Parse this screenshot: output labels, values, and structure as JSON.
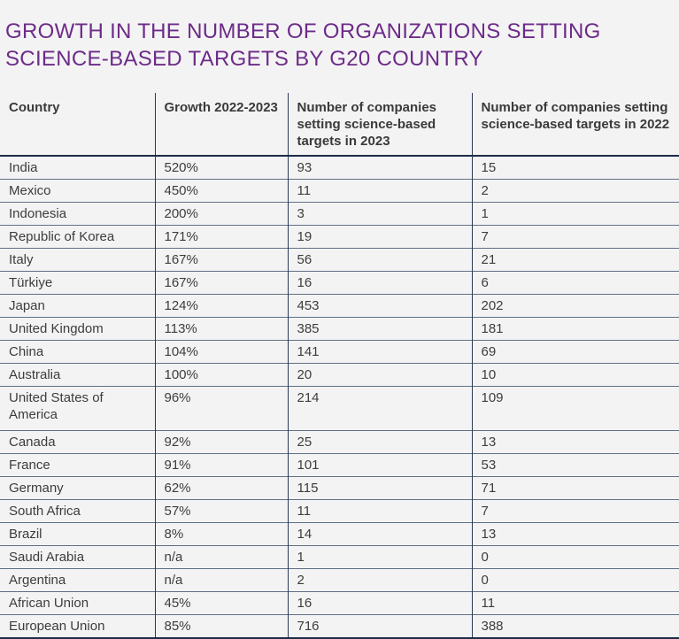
{
  "title": {
    "line1": "GROWTH IN THE NUMBER OF ORGANIZATIONS SETTING",
    "line2": "SCIENCE-BASED TARGETS BY G20 COUNTRY"
  },
  "colors": {
    "background": "#f4f3f4",
    "title_text": "#6c2b88",
    "header_text": "#3a3a3a",
    "cell_text": "#3d3d3d",
    "thick_rule": "#1e2b48",
    "thin_rule": "#5f7085",
    "column_rule": "#2c3a55"
  },
  "table": {
    "headers": {
      "country": "Country",
      "growth": "Growth 2022-2023",
      "companies_2023": "Number of companies setting science-based targets in 2023",
      "companies_2022": "Number of companies setting science-based targets in 2022"
    },
    "rows": [
      {
        "country": "India",
        "growth": "520%",
        "companies_2023": "93",
        "companies_2022": "15"
      },
      {
        "country": "Mexico",
        "growth": "450%",
        "companies_2023": "11",
        "companies_2022": "2"
      },
      {
        "country": "Indonesia",
        "growth": "200%",
        "companies_2023": "3",
        "companies_2022": "1"
      },
      {
        "country": "Republic of Korea",
        "growth": "171%",
        "companies_2023": "19",
        "companies_2022": "7"
      },
      {
        "country": "Italy",
        "growth": "167%",
        "companies_2023": "56",
        "companies_2022": "21"
      },
      {
        "country": "Türkiye",
        "growth": "167%",
        "companies_2023": "16",
        "companies_2022": "6"
      },
      {
        "country": "Japan",
        "growth": "124%",
        "companies_2023": "453",
        "companies_2022": "202"
      },
      {
        "country": "United Kingdom",
        "growth": "113%",
        "companies_2023": "385",
        "companies_2022": "181"
      },
      {
        "country": "China",
        "growth": "104%",
        "companies_2023": "141",
        "companies_2022": "69"
      },
      {
        "country": "Australia",
        "growth": "100%",
        "companies_2023": "20",
        "companies_2022": "10"
      },
      {
        "country": "United States of America",
        "growth": "96%",
        "companies_2023": "214",
        "companies_2022": "109"
      },
      {
        "country": "Canada",
        "growth": "92%",
        "companies_2023": "25",
        "companies_2022": "13"
      },
      {
        "country": "France",
        "growth": "91%",
        "companies_2023": "101",
        "companies_2022": "53"
      },
      {
        "country": "Germany",
        "growth": "62%",
        "companies_2023": "115",
        "companies_2022": "71"
      },
      {
        "country": "South Africa",
        "growth": "57%",
        "companies_2023": "11",
        "companies_2022": "7"
      },
      {
        "country": "Brazil",
        "growth": "8%",
        "companies_2023": "14",
        "companies_2022": "13"
      },
      {
        "country": "Saudi Arabia",
        "growth": "n/a",
        "companies_2023": "1",
        "companies_2022": "0"
      },
      {
        "country": "Argentina",
        "growth": "n/a",
        "companies_2023": "2",
        "companies_2022": "0"
      },
      {
        "country": "African Union",
        "growth": "45%",
        "companies_2023": "16",
        "companies_2022": "11"
      },
      {
        "country": "European Union",
        "growth": "85%",
        "companies_2023": "716",
        "companies_2022": "388"
      }
    ]
  },
  "chart_data": {
    "type": "table",
    "title": "GROWTH IN THE NUMBER OF ORGANIZATIONS SETTING SCIENCE-BASED TARGETS BY G20 COUNTRY",
    "columns": [
      "Country",
      "Growth 2022-2023",
      "Number of companies setting science-based targets in 2023",
      "Number of companies setting science-based targets in 2022"
    ],
    "rows": [
      [
        "India",
        "520%",
        93,
        15
      ],
      [
        "Mexico",
        "450%",
        11,
        2
      ],
      [
        "Indonesia",
        "200%",
        3,
        1
      ],
      [
        "Republic of Korea",
        "171%",
        19,
        7
      ],
      [
        "Italy",
        "167%",
        56,
        21
      ],
      [
        "Türkiye",
        "167%",
        16,
        6
      ],
      [
        "Japan",
        "124%",
        453,
        202
      ],
      [
        "United Kingdom",
        "113%",
        385,
        181
      ],
      [
        "China",
        "104%",
        141,
        69
      ],
      [
        "Australia",
        "100%",
        20,
        10
      ],
      [
        "United States of America",
        "96%",
        214,
        109
      ],
      [
        "Canada",
        "92%",
        25,
        13
      ],
      [
        "France",
        "91%",
        101,
        53
      ],
      [
        "Germany",
        "62%",
        115,
        71
      ],
      [
        "South Africa",
        "57%",
        11,
        7
      ],
      [
        "Brazil",
        "8%",
        14,
        13
      ],
      [
        "Saudi Arabia",
        "n/a",
        1,
        0
      ],
      [
        "Argentina",
        "n/a",
        2,
        0
      ],
      [
        "African Union",
        "45%",
        16,
        11
      ],
      [
        "European Union",
        "85%",
        716,
        388
      ]
    ]
  }
}
